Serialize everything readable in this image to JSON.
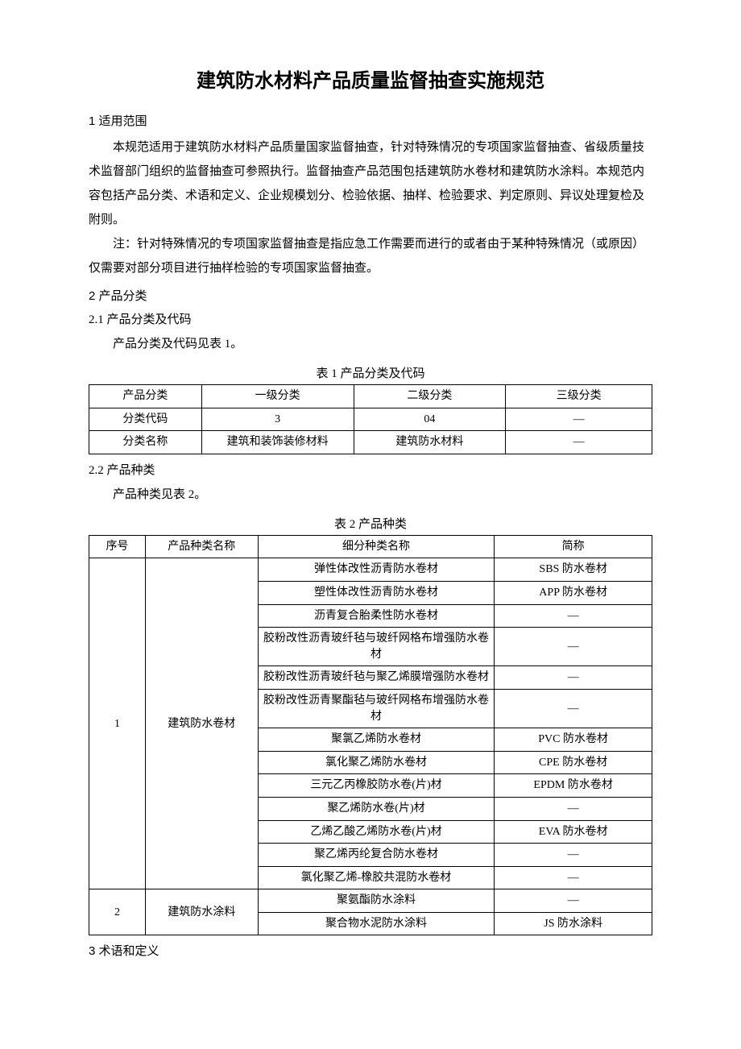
{
  "title": "建筑防水材料产品质量监督抽查实施规范",
  "section1": {
    "heading": "1 适用范围",
    "p1": "本规范适用于建筑防水材料产品质量国家监督抽查，针对特殊情况的专项国家监督抽查、省级质量技术监督部门组织的监督抽查可参照执行。监督抽查产品范围包括建筑防水卷材和建筑防水涂料。本规范内容包括产品分类、术语和定义、企业规模划分、检验依据、抽样、检验要求、判定原则、异议处理复检及附则。",
    "p2": "注：针对特殊情况的专项国家监督抽查是指应急工作需要而进行的或者由于某种特殊情况（或原因）仅需要对部分项目进行抽样检验的专项国家监督抽查。"
  },
  "section2": {
    "heading": "2 产品分类",
    "sub21": "2.1 产品分类及代码",
    "sub21_text": "产品分类及代码见表 1。",
    "table1_caption": "表 1  产品分类及代码",
    "table1": {
      "rows": [
        [
          "产品分类",
          "一级分类",
          "二级分类",
          "三级分类"
        ],
        [
          "分类代码",
          "3",
          "04",
          "—"
        ],
        [
          "分类名称",
          "建筑和装饰装修材料",
          "建筑防水材料",
          "—"
        ]
      ]
    },
    "sub22": "2.2 产品种类",
    "sub22_text": "产品种类见表 2。",
    "table2_caption": "表 2  产品种类",
    "table2": {
      "header": [
        "序号",
        "产品种类名称",
        "细分种类名称",
        "简称"
      ],
      "group1": {
        "num": "1",
        "name": "建筑防水卷材",
        "rows": [
          [
            "弹性体改性沥青防水卷材",
            "SBS 防水卷材"
          ],
          [
            "塑性体改性沥青防水卷材",
            "APP 防水卷材"
          ],
          [
            "沥青复合胎柔性防水卷材",
            "—"
          ],
          [
            "胶粉改性沥青玻纤毡与玻纤网格布增强防水卷材",
            "—"
          ],
          [
            "胶粉改性沥青玻纤毡与聚乙烯膜增强防水卷材",
            "—"
          ],
          [
            "胶粉改性沥青聚酯毡与玻纤网格布增强防水卷材",
            "—"
          ],
          [
            "聚氯乙烯防水卷材",
            "PVC 防水卷材"
          ],
          [
            "氯化聚乙烯防水卷材",
            "CPE 防水卷材"
          ],
          [
            "三元乙丙橡胶防水卷(片)材",
            "EPDM 防水卷材"
          ],
          [
            "聚乙烯防水卷(片)材",
            "—"
          ],
          [
            "乙烯乙酸乙烯防水卷(片)材",
            "EVA 防水卷材"
          ],
          [
            "聚乙烯丙纶复合防水卷材",
            "—"
          ],
          [
            "氯化聚乙烯-橡胶共混防水卷材",
            "—"
          ]
        ]
      },
      "group2": {
        "num": "2",
        "name": "建筑防水涂料",
        "rows": [
          [
            "聚氨酯防水涂料",
            "—"
          ],
          [
            "聚合物水泥防水涂料",
            "JS 防水涂料"
          ]
        ]
      }
    }
  },
  "section3": {
    "heading": "3 术语和定义"
  }
}
